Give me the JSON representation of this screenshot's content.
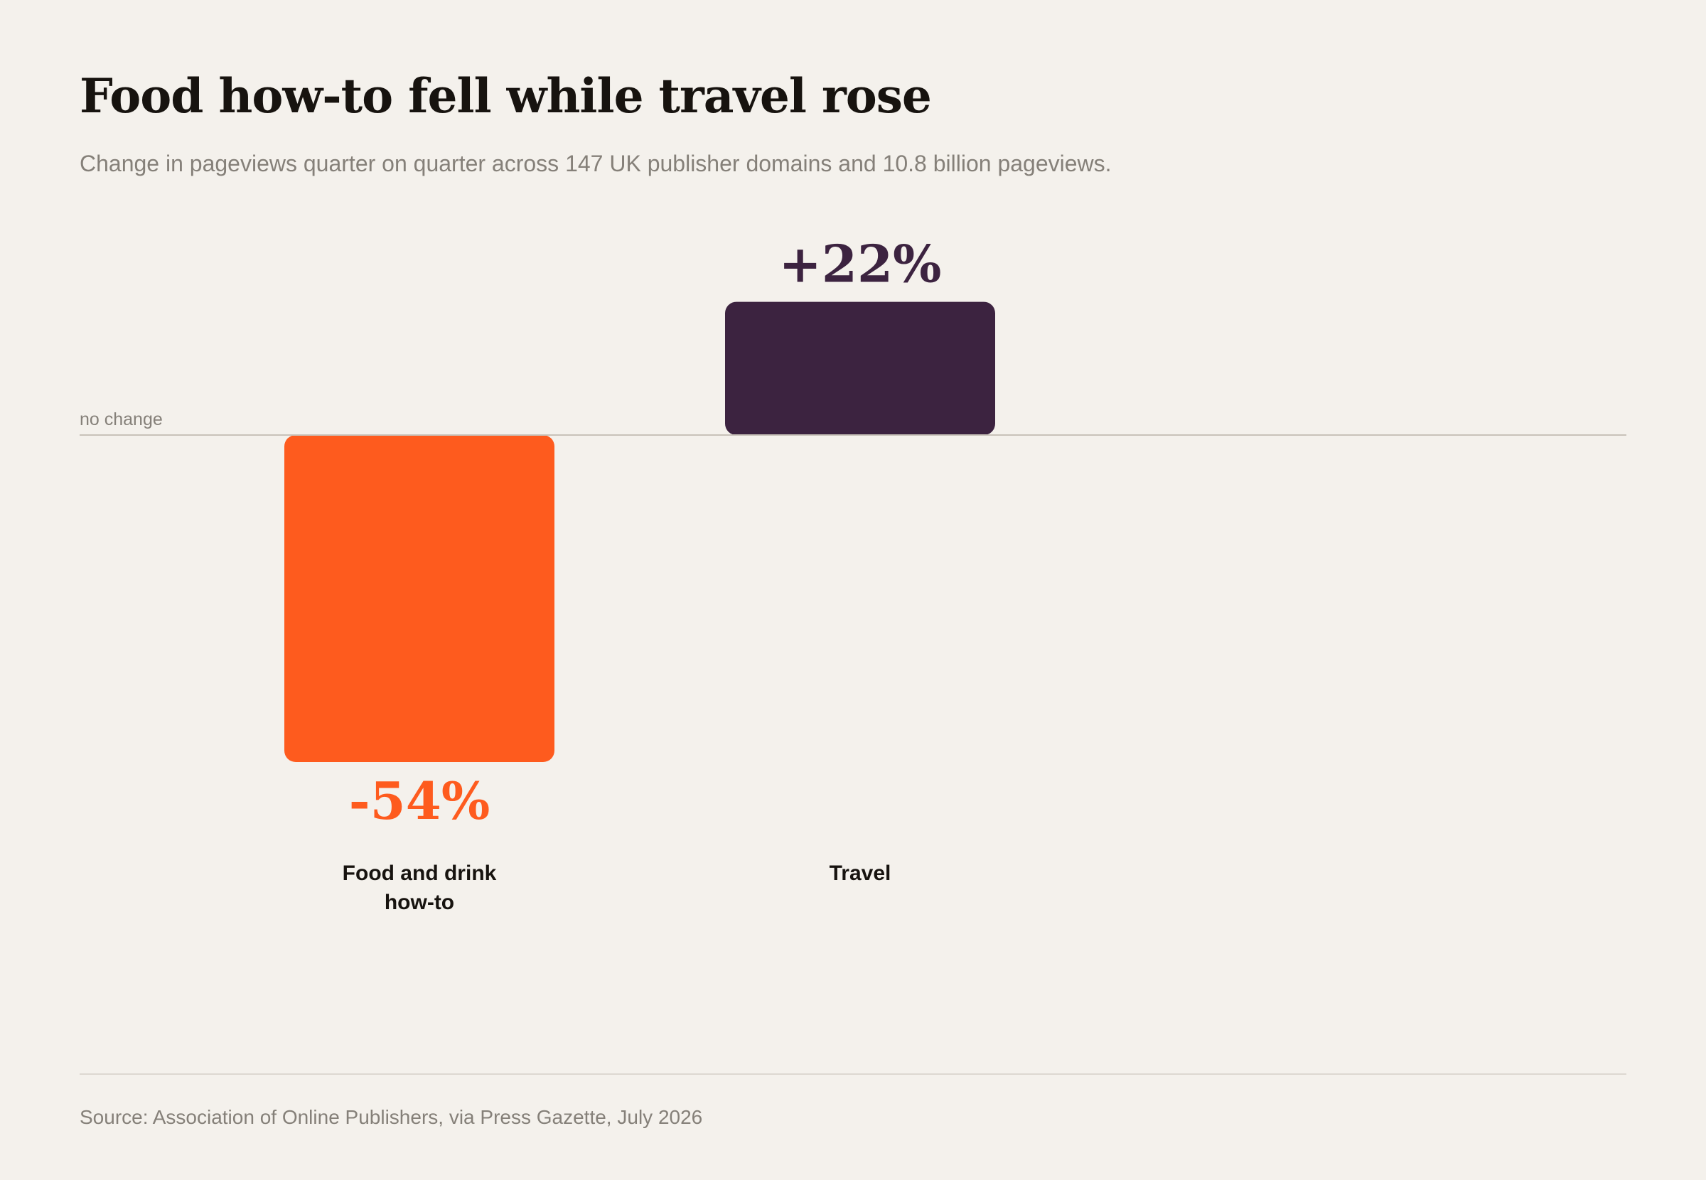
{
  "colors": {
    "background": "#f4f1ec",
    "negative": "#fe5b1e",
    "positive": "#3c2340",
    "baseline": "#c8c2b9",
    "muted_text": "#858079"
  },
  "chart_data": {
    "type": "bar",
    "title": "Food how-to fell while travel rose",
    "subtitle": "Change in pageviews quarter on quarter across 147 UK publisher domains and 10.8 billion pageviews.",
    "baseline_label": "no change",
    "categories": [
      [
        "Food and drink",
        "how-to"
      ],
      [
        "Travel"
      ]
    ],
    "values": [
      -54,
      22
    ],
    "value_labels": [
      "-54%",
      "+22%"
    ],
    "bar_colors": [
      "#fe5b1e",
      "#3c2340"
    ],
    "ylim": [
      -54,
      22
    ],
    "grid": false,
    "legend": "none",
    "xlabel": "",
    "ylabel": ""
  },
  "footer": {
    "source": "Source: Association of Online Publishers, via Press Gazette, July 2026"
  }
}
